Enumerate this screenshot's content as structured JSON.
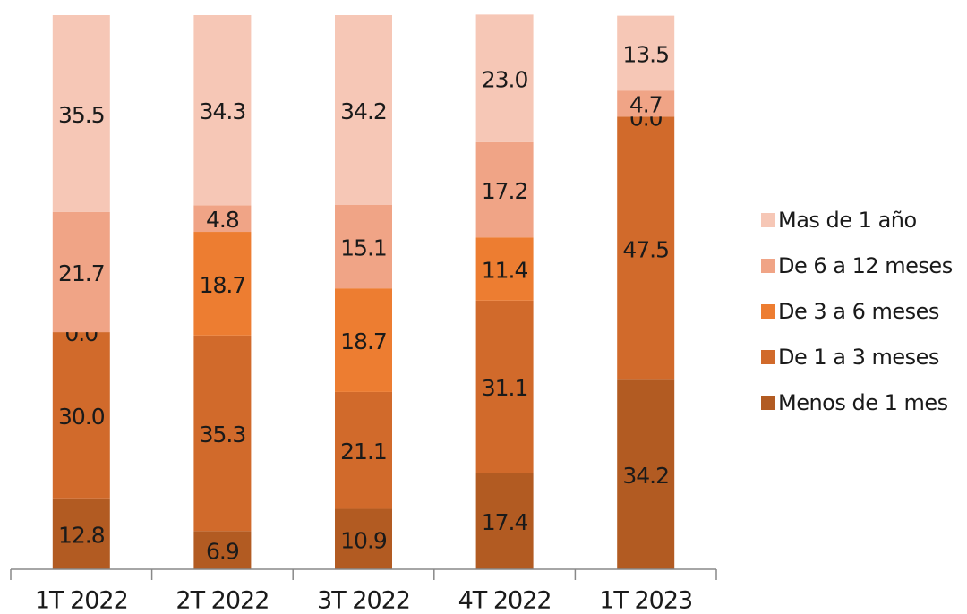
{
  "chart_data": {
    "type": "stacked_bar",
    "categories": [
      "1T 2022",
      "2T 2022",
      "3T 2022",
      "4T 2022",
      "1T 2023"
    ],
    "series": [
      {
        "name": "Menos de 1 mes",
        "color": "#b25b22",
        "values": [
          12.8,
          6.9,
          10.9,
          17.4,
          34.2
        ],
        "value_labels": [
          "12.8",
          "6.9",
          "10.9",
          "17.4",
          "34.2"
        ]
      },
      {
        "name": "De 1 a 3 meses",
        "color": "#d16a2b",
        "values": [
          30.0,
          35.3,
          21.1,
          31.1,
          47.5
        ],
        "value_labels": [
          "30.0",
          "35.3",
          "21.1",
          "31.1",
          "47.5"
        ]
      },
      {
        "name": "De 3 a 6 meses",
        "color": "#ed7d31",
        "values": [
          0.0,
          18.7,
          18.7,
          11.4,
          0.0
        ],
        "value_labels": [
          "0.0",
          "18.7",
          "18.7",
          "11.4",
          "0.0"
        ]
      },
      {
        "name": "De 6 a 12 meses",
        "color": "#f0a486",
        "values": [
          21.7,
          4.8,
          15.1,
          17.2,
          4.7
        ],
        "value_labels": [
          "21.7",
          "4.8",
          "15.1",
          "17.2",
          "4.7"
        ]
      },
      {
        "name": "Mas de 1 año",
        "color": "#f6c7b6",
        "values": [
          35.5,
          34.3,
          34.2,
          23.0,
          13.5
        ],
        "value_labels": [
          "35.5",
          "34.3",
          "34.2",
          "23.0",
          "13.5"
        ]
      }
    ],
    "ylim": [
      0,
      100
    ],
    "legend": "right"
  }
}
